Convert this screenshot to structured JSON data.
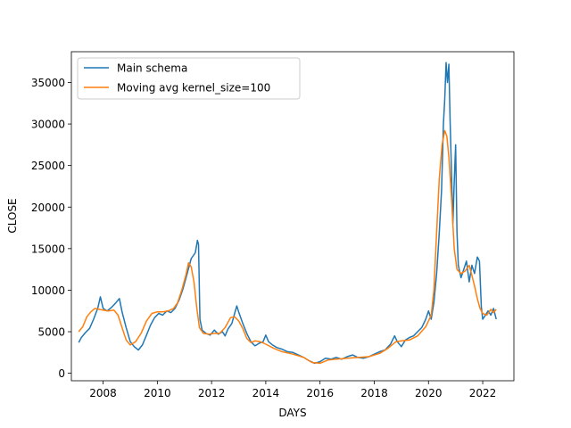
{
  "chart_data": {
    "type": "line",
    "xlabel": "DAYS",
    "ylabel": "CLOSE",
    "xlim": [
      2006.83,
      2023.15
    ],
    "ylim": [
      -900,
      38700
    ],
    "xticks": [
      {
        "value": 2008,
        "label": "2008"
      },
      {
        "value": 2010,
        "label": "2010"
      },
      {
        "value": 2012,
        "label": "2012"
      },
      {
        "value": 2014,
        "label": "2014"
      },
      {
        "value": 2016,
        "label": "2016"
      },
      {
        "value": 2018,
        "label": "2018"
      },
      {
        "value": 2020,
        "label": "2020"
      },
      {
        "value": 2022,
        "label": "2022"
      }
    ],
    "yticks": [
      {
        "value": 0,
        "label": "0"
      },
      {
        "value": 5000,
        "label": "5000"
      },
      {
        "value": 10000,
        "label": "10000"
      },
      {
        "value": 15000,
        "label": "15000"
      },
      {
        "value": 20000,
        "label": "20000"
      },
      {
        "value": 25000,
        "label": "25000"
      },
      {
        "value": 30000,
        "label": "30000"
      },
      {
        "value": 35000,
        "label": "35000"
      }
    ],
    "grid": false,
    "legend_position": "top-left",
    "series": [
      {
        "name": "Main schema",
        "color": "#1f77b4",
        "points": [
          [
            2007.1,
            3700
          ],
          [
            2007.2,
            4300
          ],
          [
            2007.35,
            4900
          ],
          [
            2007.5,
            5400
          ],
          [
            2007.65,
            6500
          ],
          [
            2007.8,
            7800
          ],
          [
            2007.9,
            9200
          ],
          [
            2008.0,
            7800
          ],
          [
            2008.15,
            7500
          ],
          [
            2008.3,
            7900
          ],
          [
            2008.45,
            8400
          ],
          [
            2008.6,
            9000
          ],
          [
            2008.7,
            7400
          ],
          [
            2008.85,
            5500
          ],
          [
            2009.0,
            3800
          ],
          [
            2009.15,
            3200
          ],
          [
            2009.3,
            2800
          ],
          [
            2009.45,
            3400
          ],
          [
            2009.6,
            4600
          ],
          [
            2009.75,
            5800
          ],
          [
            2009.9,
            6700
          ],
          [
            2010.05,
            7200
          ],
          [
            2010.2,
            7000
          ],
          [
            2010.35,
            7500
          ],
          [
            2010.5,
            7300
          ],
          [
            2010.65,
            7800
          ],
          [
            2010.8,
            8800
          ],
          [
            2010.95,
            10200
          ],
          [
            2011.1,
            12000
          ],
          [
            2011.25,
            13800
          ],
          [
            2011.4,
            14500
          ],
          [
            2011.48,
            16000
          ],
          [
            2011.52,
            15500
          ],
          [
            2011.57,
            6500
          ],
          [
            2011.65,
            5200
          ],
          [
            2011.8,
            4800
          ],
          [
            2011.95,
            4600
          ],
          [
            2012.1,
            5200
          ],
          [
            2012.25,
            4700
          ],
          [
            2012.4,
            5000
          ],
          [
            2012.5,
            4500
          ],
          [
            2012.6,
            5300
          ],
          [
            2012.75,
            6000
          ],
          [
            2012.85,
            7200
          ],
          [
            2012.93,
            8100
          ],
          [
            2013.0,
            7400
          ],
          [
            2013.15,
            6000
          ],
          [
            2013.3,
            4800
          ],
          [
            2013.45,
            3800
          ],
          [
            2013.6,
            3300
          ],
          [
            2013.75,
            3600
          ],
          [
            2013.9,
            3800
          ],
          [
            2014.0,
            4600
          ],
          [
            2014.1,
            3800
          ],
          [
            2014.25,
            3400
          ],
          [
            2014.4,
            3100
          ],
          [
            2014.6,
            2900
          ],
          [
            2014.8,
            2600
          ],
          [
            2015.0,
            2500
          ],
          [
            2015.2,
            2200
          ],
          [
            2015.4,
            1900
          ],
          [
            2015.6,
            1500
          ],
          [
            2015.8,
            1200
          ],
          [
            2016.0,
            1400
          ],
          [
            2016.2,
            1800
          ],
          [
            2016.4,
            1700
          ],
          [
            2016.6,
            1900
          ],
          [
            2016.8,
            1700
          ],
          [
            2017.0,
            2000
          ],
          [
            2017.2,
            2200
          ],
          [
            2017.4,
            1900
          ],
          [
            2017.6,
            1800
          ],
          [
            2017.8,
            2000
          ],
          [
            2018.0,
            2300
          ],
          [
            2018.2,
            2600
          ],
          [
            2018.4,
            2800
          ],
          [
            2018.6,
            3500
          ],
          [
            2018.75,
            4500
          ],
          [
            2018.85,
            3800
          ],
          [
            2019.0,
            3200
          ],
          [
            2019.15,
            4000
          ],
          [
            2019.3,
            4300
          ],
          [
            2019.45,
            4500
          ],
          [
            2019.6,
            5000
          ],
          [
            2019.75,
            5500
          ],
          [
            2019.9,
            6500
          ],
          [
            2020.0,
            7500
          ],
          [
            2020.1,
            6500
          ],
          [
            2020.2,
            8500
          ],
          [
            2020.3,
            12000
          ],
          [
            2020.4,
            17000
          ],
          [
            2020.48,
            22000
          ],
          [
            2020.55,
            30000
          ],
          [
            2020.6,
            33000
          ],
          [
            2020.65,
            37400
          ],
          [
            2020.7,
            35000
          ],
          [
            2020.75,
            37200
          ],
          [
            2020.8,
            30000
          ],
          [
            2020.85,
            24000
          ],
          [
            2020.9,
            18000
          ],
          [
            2020.95,
            23000
          ],
          [
            2021.0,
            27500
          ],
          [
            2021.05,
            17000
          ],
          [
            2021.1,
            13000
          ],
          [
            2021.2,
            11500
          ],
          [
            2021.3,
            12500
          ],
          [
            2021.4,
            13500
          ],
          [
            2021.5,
            11000
          ],
          [
            2021.6,
            13000
          ],
          [
            2021.7,
            12000
          ],
          [
            2021.8,
            14000
          ],
          [
            2021.88,
            13500
          ],
          [
            2021.95,
            8000
          ],
          [
            2022.0,
            6500
          ],
          [
            2022.1,
            7000
          ],
          [
            2022.2,
            7500
          ],
          [
            2022.3,
            7000
          ],
          [
            2022.4,
            7800
          ],
          [
            2022.5,
            6500
          ]
        ]
      },
      {
        "name": "Moving avg kernel_size=100",
        "color": "#ff7f0e",
        "points": [
          [
            2007.1,
            5000
          ],
          [
            2007.25,
            5600
          ],
          [
            2007.4,
            6800
          ],
          [
            2007.55,
            7400
          ],
          [
            2007.7,
            7800
          ],
          [
            2007.85,
            7700
          ],
          [
            2008.0,
            7600
          ],
          [
            2008.2,
            7500
          ],
          [
            2008.4,
            7600
          ],
          [
            2008.55,
            7000
          ],
          [
            2008.7,
            5500
          ],
          [
            2008.85,
            4000
          ],
          [
            2009.0,
            3400
          ],
          [
            2009.2,
            3800
          ],
          [
            2009.4,
            4800
          ],
          [
            2009.6,
            6300
          ],
          [
            2009.8,
            7200
          ],
          [
            2010.0,
            7400
          ],
          [
            2010.2,
            7400
          ],
          [
            2010.4,
            7500
          ],
          [
            2010.6,
            7800
          ],
          [
            2010.75,
            8500
          ],
          [
            2010.9,
            10000
          ],
          [
            2011.05,
            11800
          ],
          [
            2011.15,
            13300
          ],
          [
            2011.25,
            12800
          ],
          [
            2011.35,
            11000
          ],
          [
            2011.45,
            8000
          ],
          [
            2011.55,
            5500
          ],
          [
            2011.7,
            4800
          ],
          [
            2011.9,
            4700
          ],
          [
            2012.1,
            4800
          ],
          [
            2012.3,
            4800
          ],
          [
            2012.5,
            5500
          ],
          [
            2012.7,
            6700
          ],
          [
            2012.85,
            6800
          ],
          [
            2013.0,
            6300
          ],
          [
            2013.15,
            5400
          ],
          [
            2013.3,
            4200
          ],
          [
            2013.45,
            3700
          ],
          [
            2013.6,
            3900
          ],
          [
            2013.8,
            3800
          ],
          [
            2014.0,
            3500
          ],
          [
            2014.3,
            3000
          ],
          [
            2014.6,
            2600
          ],
          [
            2015.0,
            2300
          ],
          [
            2015.4,
            1900
          ],
          [
            2015.7,
            1300
          ],
          [
            2016.0,
            1200
          ],
          [
            2016.3,
            1600
          ],
          [
            2016.6,
            1700
          ],
          [
            2017.0,
            1800
          ],
          [
            2017.4,
            1900
          ],
          [
            2017.8,
            2000
          ],
          [
            2018.2,
            2400
          ],
          [
            2018.5,
            3000
          ],
          [
            2018.8,
            3800
          ],
          [
            2019.0,
            3900
          ],
          [
            2019.3,
            4000
          ],
          [
            2019.6,
            4500
          ],
          [
            2019.9,
            5600
          ],
          [
            2020.1,
            7000
          ],
          [
            2020.2,
            10000
          ],
          [
            2020.3,
            17000
          ],
          [
            2020.4,
            23500
          ],
          [
            2020.5,
            27500
          ],
          [
            2020.6,
            29200
          ],
          [
            2020.68,
            28500
          ],
          [
            2020.75,
            26000
          ],
          [
            2020.85,
            21000
          ],
          [
            2020.95,
            15000
          ],
          [
            2021.05,
            12500
          ],
          [
            2021.2,
            12000
          ],
          [
            2021.35,
            12300
          ],
          [
            2021.5,
            13000
          ],
          [
            2021.6,
            11800
          ],
          [
            2021.7,
            10500
          ],
          [
            2021.8,
            9000
          ],
          [
            2021.9,
            7800
          ],
          [
            2022.0,
            7200
          ],
          [
            2022.15,
            7000
          ],
          [
            2022.3,
            7700
          ],
          [
            2022.4,
            7300
          ],
          [
            2022.5,
            7700
          ]
        ]
      }
    ]
  }
}
